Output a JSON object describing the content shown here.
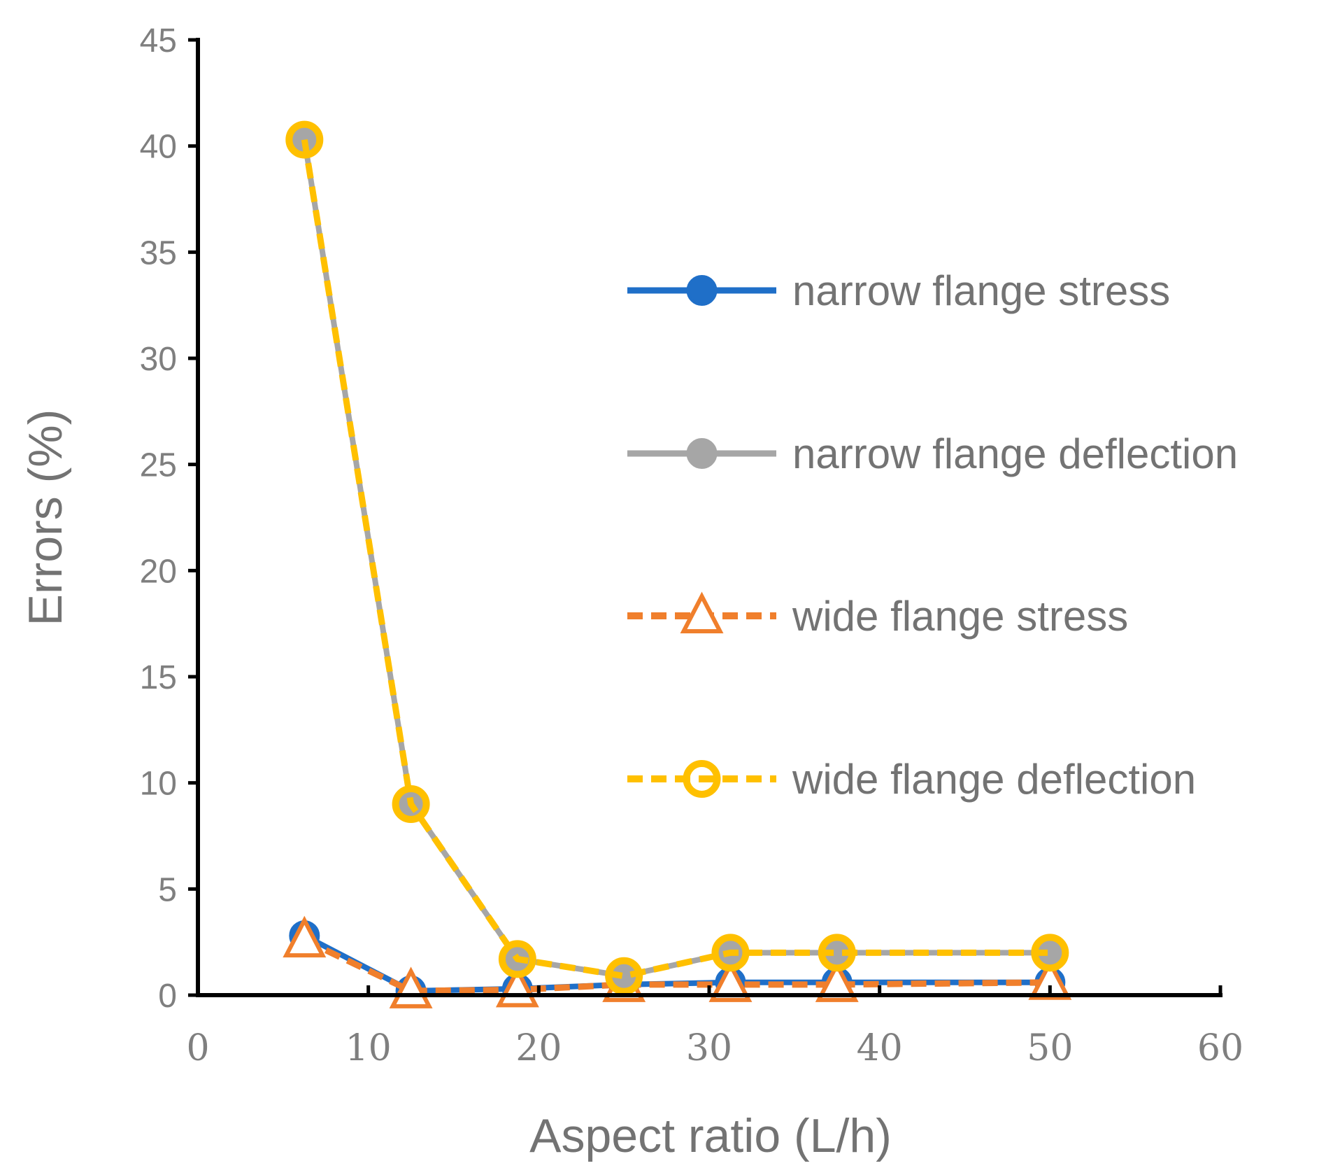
{
  "chart_data": {
    "type": "line",
    "title": "",
    "xlabel": "Aspect ratio (L/h)",
    "ylabel": "Errors (%)",
    "xlim": [
      0,
      60
    ],
    "ylim": [
      0,
      45
    ],
    "xticks": [
      0,
      10,
      20,
      30,
      40,
      50,
      60
    ],
    "yticks": [
      0,
      5,
      10,
      15,
      20,
      25,
      30,
      35,
      40,
      45
    ],
    "grid": false,
    "legend_position": "right",
    "series": [
      {
        "name": "narrow flange stress",
        "color": "#1f6fc8",
        "line_style": "solid",
        "marker": "filled-circle",
        "x": [
          6.25,
          12.5,
          18.75,
          25,
          31.25,
          37.5,
          50
        ],
        "y": [
          2.8,
          0.2,
          0.3,
          0.5,
          0.6,
          0.6,
          0.6
        ]
      },
      {
        "name": "narrow flange deflection",
        "color": "#a6a6a6",
        "line_style": "solid",
        "marker": "filled-circle",
        "x": [
          6.25,
          12.5,
          18.75,
          25,
          31.25,
          37.5,
          50
        ],
        "y": [
          40.3,
          9.0,
          1.7,
          0.9,
          2.0,
          2.0,
          2.0
        ]
      },
      {
        "name": "wide flange stress",
        "color": "#f07f2c",
        "line_style": "dashed",
        "marker": "open-triangle",
        "x": [
          6.25,
          12.5,
          18.75,
          25,
          31.25,
          37.5,
          50
        ],
        "y": [
          2.6,
          0.2,
          0.25,
          0.5,
          0.5,
          0.5,
          0.6
        ]
      },
      {
        "name": "wide flange deflection",
        "color": "#ffc000",
        "line_style": "dashed",
        "marker": "open-circle",
        "x": [
          6.25,
          12.5,
          18.75,
          25,
          31.25,
          37.5,
          50
        ],
        "y": [
          40.3,
          9.0,
          1.7,
          0.9,
          2.0,
          2.0,
          2.0
        ]
      }
    ]
  }
}
